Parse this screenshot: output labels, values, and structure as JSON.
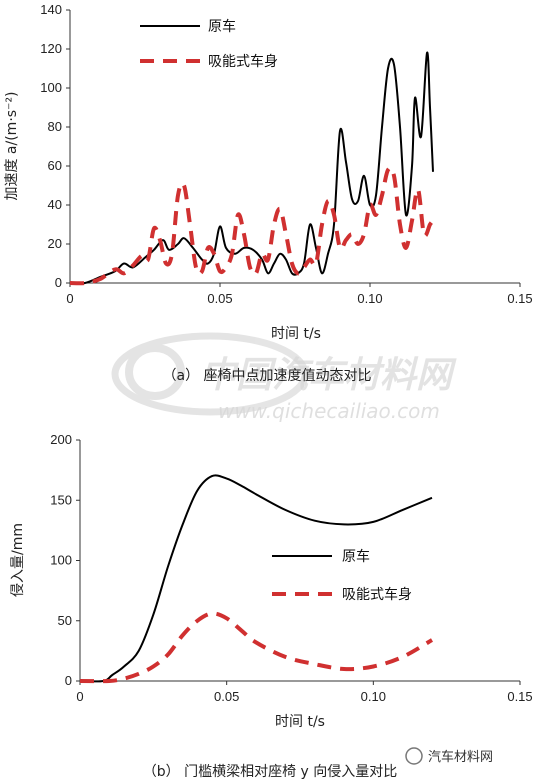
{
  "chart_data": [
    {
      "type": "line",
      "caption": "（a） 座椅中点加速度值动态对比",
      "xlabel": "时间 t/s",
      "ylabel": "加速度 a/(m·s⁻²)",
      "xlim": [
        0,
        0.15
      ],
      "ylim": [
        0,
        140
      ],
      "xticks": [
        "0",
        "0.05",
        "0.10",
        "0.15"
      ],
      "yticks": [
        "0",
        "20",
        "40",
        "60",
        "80",
        "100",
        "120",
        "140"
      ],
      "legend_position": "top-left",
      "series": [
        {
          "name": "原车",
          "color": "#000000",
          "style": "solid",
          "points": [
            [
              0,
              0
            ],
            [
              0.005,
              0
            ],
            [
              0.01,
              3
            ],
            [
              0.015,
              6
            ],
            [
              0.018,
              10
            ],
            [
              0.021,
              8
            ],
            [
              0.025,
              13
            ],
            [
              0.028,
              17
            ],
            [
              0.031,
              22
            ],
            [
              0.033,
              17
            ],
            [
              0.036,
              20
            ],
            [
              0.038,
              23
            ],
            [
              0.041,
              18
            ],
            [
              0.044,
              12
            ],
            [
              0.046,
              10
            ],
            [
              0.048,
              15
            ],
            [
              0.05,
              29
            ],
            [
              0.052,
              18
            ],
            [
              0.055,
              15
            ],
            [
              0.058,
              18
            ],
            [
              0.061,
              17
            ],
            [
              0.064,
              12
            ],
            [
              0.066,
              5
            ],
            [
              0.068,
              10
            ],
            [
              0.07,
              15
            ],
            [
              0.072,
              12
            ],
            [
              0.074,
              5
            ],
            [
              0.076,
              5
            ],
            [
              0.078,
              10
            ],
            [
              0.08,
              30
            ],
            [
              0.082,
              18
            ],
            [
              0.084,
              5
            ],
            [
              0.086,
              15
            ],
            [
              0.088,
              30
            ],
            [
              0.09,
              78
            ],
            [
              0.092,
              62
            ],
            [
              0.094,
              43
            ],
            [
              0.096,
              42
            ],
            [
              0.098,
              55
            ],
            [
              0.1,
              40
            ],
            [
              0.102,
              45
            ],
            [
              0.104,
              80
            ],
            [
              0.106,
              110
            ],
            [
              0.108,
              112
            ],
            [
              0.11,
              80
            ],
            [
              0.112,
              35
            ],
            [
              0.114,
              60
            ],
            [
              0.115,
              95
            ],
            [
              0.117,
              75
            ],
            [
              0.119,
              118
            ],
            [
              0.12,
              90
            ],
            [
              0.121,
              57
            ]
          ]
        },
        {
          "name": "吸能式车身",
          "color": "#d03030",
          "style": "dashed",
          "points": [
            [
              0,
              0
            ],
            [
              0.005,
              0
            ],
            [
              0.01,
              2
            ],
            [
              0.015,
              7
            ],
            [
              0.018,
              5
            ],
            [
              0.021,
              9
            ],
            [
              0.024,
              14
            ],
            [
              0.026,
              12
            ],
            [
              0.028,
              28
            ],
            [
              0.03,
              22
            ],
            [
              0.032,
              10
            ],
            [
              0.034,
              15
            ],
            [
              0.036,
              45
            ],
            [
              0.038,
              50
            ],
            [
              0.04,
              30
            ],
            [
              0.042,
              8
            ],
            [
              0.044,
              6
            ],
            [
              0.046,
              18
            ],
            [
              0.048,
              15
            ],
            [
              0.05,
              6
            ],
            [
              0.052,
              8
            ],
            [
              0.054,
              15
            ],
            [
              0.056,
              35
            ],
            [
              0.058,
              25
            ],
            [
              0.06,
              8
            ],
            [
              0.062,
              5
            ],
            [
              0.064,
              15
            ],
            [
              0.066,
              12
            ],
            [
              0.068,
              30
            ],
            [
              0.07,
              38
            ],
            [
              0.072,
              25
            ],
            [
              0.074,
              10
            ],
            [
              0.076,
              5
            ],
            [
              0.078,
              8
            ],
            [
              0.08,
              12
            ],
            [
              0.082,
              10
            ],
            [
              0.084,
              30
            ],
            [
              0.086,
              42
            ],
            [
              0.088,
              35
            ],
            [
              0.09,
              18
            ],
            [
              0.092,
              22
            ],
            [
              0.094,
              25
            ],
            [
              0.096,
              20
            ],
            [
              0.098,
              25
            ],
            [
              0.1,
              40
            ],
            [
              0.102,
              35
            ],
            [
              0.104,
              45
            ],
            [
              0.106,
              58
            ],
            [
              0.108,
              55
            ],
            [
              0.11,
              30
            ],
            [
              0.112,
              18
            ],
            [
              0.114,
              32
            ],
            [
              0.116,
              48
            ],
            [
              0.118,
              25
            ],
            [
              0.12,
              30
            ],
            [
              0.121,
              32
            ]
          ]
        }
      ]
    },
    {
      "type": "line",
      "caption": "（b） 门槛横梁相对座椅 y 向侵入量对比",
      "xlabel": "时间 t/s",
      "ylabel": "侵入量/mm",
      "xlim": [
        0,
        0.15
      ],
      "ylim": [
        0,
        200
      ],
      "xticks": [
        "0",
        "0.05",
        "0.10",
        "0.15"
      ],
      "yticks": [
        "0",
        "50",
        "100",
        "150",
        "200"
      ],
      "legend_position": "center-right",
      "series": [
        {
          "name": "原车",
          "color": "#000000",
          "style": "solid",
          "points": [
            [
              0,
              0
            ],
            [
              0.008,
              0
            ],
            [
              0.011,
              5
            ],
            [
              0.015,
              12
            ],
            [
              0.02,
              25
            ],
            [
              0.025,
              55
            ],
            [
              0.03,
              95
            ],
            [
              0.035,
              130
            ],
            [
              0.04,
              158
            ],
            [
              0.045,
              170
            ],
            [
              0.05,
              168
            ],
            [
              0.055,
              162
            ],
            [
              0.06,
              155
            ],
            [
              0.07,
              142
            ],
            [
              0.08,
              133
            ],
            [
              0.09,
              130
            ],
            [
              0.1,
              132
            ],
            [
              0.11,
              142
            ],
            [
              0.12,
              152
            ]
          ]
        },
        {
          "name": "吸能式车身",
          "color": "#d03030",
          "style": "dashed",
          "points": [
            [
              0,
              0
            ],
            [
              0.01,
              0
            ],
            [
              0.015,
              2
            ],
            [
              0.02,
              6
            ],
            [
              0.025,
              12
            ],
            [
              0.03,
              22
            ],
            [
              0.035,
              38
            ],
            [
              0.04,
              50
            ],
            [
              0.045,
              56
            ],
            [
              0.05,
              52
            ],
            [
              0.055,
              42
            ],
            [
              0.06,
              32
            ],
            [
              0.07,
              20
            ],
            [
              0.08,
              14
            ],
            [
              0.09,
              10
            ],
            [
              0.1,
              12
            ],
            [
              0.11,
              20
            ],
            [
              0.12,
              34
            ]
          ]
        }
      ]
    }
  ],
  "watermark": {
    "brand": "中国汽车材料网",
    "url": "www.qichecailiao.com",
    "corner": "汽车材料网"
  }
}
